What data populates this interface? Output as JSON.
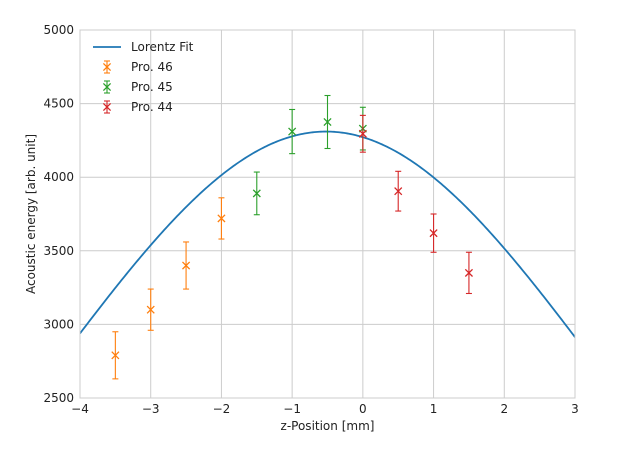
{
  "chart_data": {
    "type": "scatter",
    "title": "",
    "xlabel": "z-Position [mm]",
    "ylabel": "Acoustic energy [arb. unit]",
    "xlim": [
      -4,
      3
    ],
    "ylim": [
      2500,
      5000
    ],
    "xticks": [
      -4,
      -3,
      -2,
      -1,
      0,
      1,
      2,
      3
    ],
    "xtick_labels": [
      "−4",
      "−3",
      "−2",
      "−1",
      "0",
      "1",
      "2",
      "3"
    ],
    "yticks": [
      2500,
      3000,
      3500,
      4000,
      4500,
      5000
    ],
    "ytick_labels": [
      "2500",
      "3000",
      "3500",
      "4000",
      "4500",
      "5000"
    ],
    "grid": true,
    "legend_position": "top-left",
    "fit": {
      "name": "Lorentz Fit",
      "color": "#1f77b4",
      "type": "lorentzian",
      "x0": -0.52,
      "peak": 4310,
      "hwhm": 7.0,
      "baseline": -2610
    },
    "series": [
      {
        "name": "Pro. 46",
        "color": "#ff7f0e",
        "x": [
          -3.5,
          -3.0,
          -2.5,
          -2.0
        ],
        "y": [
          2790,
          3100,
          3400,
          3720
        ],
        "err": [
          160,
          140,
          160,
          140
        ]
      },
      {
        "name": "Pro. 45",
        "color": "#2ca02c",
        "x": [
          -1.5,
          -1.0,
          -0.5,
          0.0
        ],
        "y": [
          3890,
          4310,
          4375,
          4330
        ],
        "err": [
          145,
          150,
          180,
          145
        ]
      },
      {
        "name": "Pro. 44",
        "color": "#d62728",
        "x": [
          0.0,
          0.5,
          1.0,
          1.5
        ],
        "y": [
          4295,
          3905,
          3620,
          3350
        ],
        "err": [
          125,
          135,
          130,
          140
        ]
      }
    ]
  }
}
